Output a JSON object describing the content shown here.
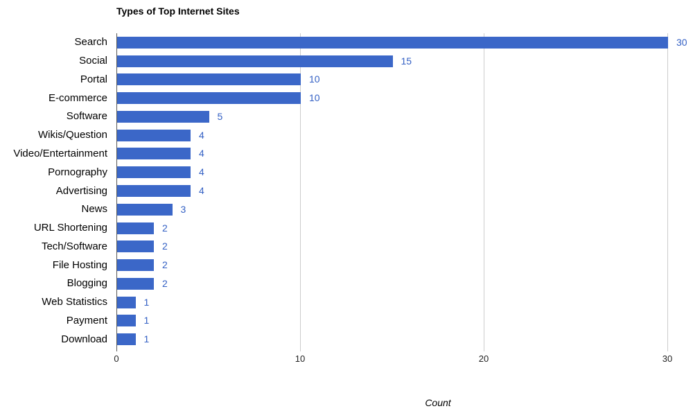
{
  "chart_data": {
    "type": "bar",
    "orientation": "horizontal",
    "title": "Types of Top Internet Sites",
    "xlabel": "Count",
    "categories": [
      "Search",
      "Social",
      "Portal",
      "E-commerce",
      "Software",
      "Wikis/Question",
      "Video/Entertainment",
      "Pornography",
      "Advertising",
      "News",
      "URL Shortening",
      "Tech/Software",
      "File Hosting",
      "Blogging",
      "Web Statistics",
      "Payment",
      "Download"
    ],
    "values": [
      30,
      15,
      10,
      10,
      5,
      4,
      4,
      4,
      4,
      3,
      2,
      2,
      2,
      2,
      1,
      1,
      1
    ],
    "x_ticks": [
      0,
      10,
      20,
      30
    ],
    "xlim": [
      0,
      30
    ],
    "grid": "vertical-only",
    "legend": "none",
    "bar_color": "#3b67c8",
    "value_label_color": "#3360c4",
    "gridline_color": "#cccccc",
    "axis_line_color": "#555555"
  }
}
